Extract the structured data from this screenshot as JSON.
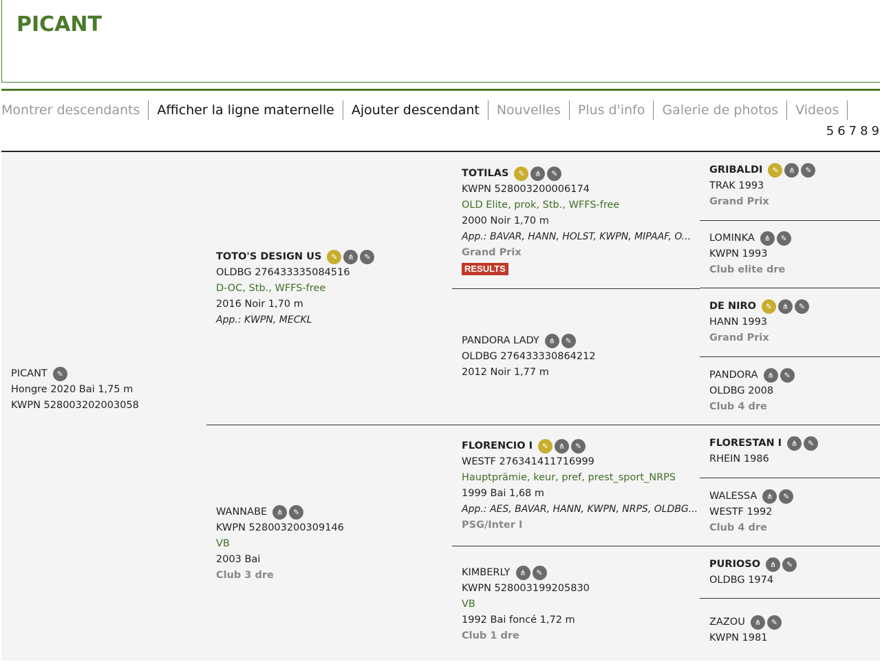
{
  "title": "PICANT",
  "nav": [
    {
      "label": "Montrer descendants",
      "state": "dim"
    },
    {
      "label": "Afficher la ligne maternelle",
      "state": "active"
    },
    {
      "label": "Ajouter descendant",
      "state": "active"
    },
    {
      "label": "Nouvelles",
      "state": "dim"
    },
    {
      "label": "Plus d'info",
      "state": "dim"
    },
    {
      "label": "Galerie de photos",
      "state": "dim"
    },
    {
      "label": "Videos",
      "state": "dim"
    }
  ],
  "pages": [
    "5",
    "6",
    "7",
    "8",
    "9"
  ],
  "colors": {
    "brand": "#4a7a2c",
    "gold_icon": "#c9ad2e",
    "grey_icon": "#6b6b6b",
    "results": "#c0392b"
  },
  "pedigree": [
    {
      "name": "PICANT",
      "bold": false,
      "icons": [
        "edit-icon"
      ],
      "lines": [
        {
          "t": "Hongre 2020 Bai 1,75 m",
          "k": "info"
        },
        {
          "t": "KWPN 528003202003058",
          "k": "id"
        }
      ]
    },
    {
      "name": "TOTO'S DESIGN US",
      "bold": true,
      "icons": [
        "approved-stallion-icon",
        "pedigree-tree-icon",
        "edit-icon"
      ],
      "lines": [
        {
          "t": "OLDBG 276433335084516",
          "k": "id"
        },
        {
          "t": "D-OC, Stb., WFFS-free",
          "k": "predicates"
        },
        {
          "t": "2016 Noir 1,70 m",
          "k": "info"
        },
        {
          "t": "App.: KWPN, MECKL",
          "k": "approvals"
        }
      ]
    },
    {
      "name": "WANNABE",
      "bold": false,
      "icons": [
        "pedigree-tree-icon",
        "edit-icon"
      ],
      "lines": [
        {
          "t": "KWPN 528003200309146",
          "k": "id"
        },
        {
          "t": "VB",
          "k": "predicates"
        },
        {
          "t": "2003 Bai",
          "k": "info"
        },
        {
          "t": "Club 3 dre",
          "k": "level"
        }
      ]
    },
    {
      "name": "TOTILAS",
      "bold": true,
      "icons": [
        "approved-stallion-icon",
        "pedigree-tree-icon",
        "edit-icon"
      ],
      "lines": [
        {
          "t": "KWPN 528003200006174",
          "k": "id"
        },
        {
          "t": "OLD Elite, prok, Stb., WFFS-free",
          "k": "predicates"
        },
        {
          "t": "2000 Noir 1,70 m",
          "k": "info"
        },
        {
          "t": "App.: BAVAR, HANN, HOLST, KWPN, MIPAAF, O...",
          "k": "approvals"
        },
        {
          "t": "Grand Prix",
          "k": "level"
        }
      ],
      "results": "RESULTS"
    },
    {
      "name": "PANDORA LADY",
      "bold": false,
      "icons": [
        "pedigree-tree-icon",
        "edit-icon"
      ],
      "lines": [
        {
          "t": "OLDBG 276433330864212",
          "k": "id"
        },
        {
          "t": "2012 Noir 1,77 m",
          "k": "info"
        }
      ]
    },
    {
      "name": "FLORENCIO I",
      "bold": true,
      "icons": [
        "approved-stallion-icon",
        "pedigree-tree-icon",
        "edit-icon"
      ],
      "lines": [
        {
          "t": "WESTF 276341411716999",
          "k": "id"
        },
        {
          "t": "Hauptprämie, keur, pref, prest_sport_NRPS",
          "k": "predicates"
        },
        {
          "t": "1999 Bai 1,68 m",
          "k": "info"
        },
        {
          "t": "App.: AES, BAVAR, HANN, KWPN, NRPS, OLDBG...",
          "k": "approvals"
        },
        {
          "t": "PSG/Inter I",
          "k": "level"
        }
      ]
    },
    {
      "name": "KIMBERLY",
      "bold": false,
      "icons": [
        "pedigree-tree-icon",
        "edit-icon"
      ],
      "lines": [
        {
          "t": "KWPN 528003199205830",
          "k": "id"
        },
        {
          "t": "VB",
          "k": "predicates"
        },
        {
          "t": "1992 Bai foncé 1,72 m",
          "k": "info"
        },
        {
          "t": "Club 1 dre",
          "k": "level"
        }
      ]
    },
    {
      "name": "GRIBALDI",
      "bold": true,
      "icons": [
        "approved-stallion-icon",
        "pedigree-tree-icon",
        "edit-icon"
      ],
      "lines": [
        {
          "t": "TRAK 1993",
          "k": "id"
        },
        {
          "t": "Grand Prix",
          "k": "level"
        }
      ]
    },
    {
      "name": "LOMINKA",
      "bold": false,
      "icons": [
        "pedigree-tree-icon",
        "edit-icon"
      ],
      "lines": [
        {
          "t": "KWPN 1993",
          "k": "id"
        },
        {
          "t": "Club elite dre",
          "k": "level"
        }
      ]
    },
    {
      "name": "DE NIRO",
      "bold": true,
      "icons": [
        "approved-stallion-icon",
        "pedigree-tree-icon",
        "edit-icon"
      ],
      "lines": [
        {
          "t": "HANN 1993",
          "k": "id"
        },
        {
          "t": "Grand Prix",
          "k": "level"
        }
      ]
    },
    {
      "name": "PANDORA",
      "bold": false,
      "icons": [
        "pedigree-tree-icon",
        "edit-icon"
      ],
      "lines": [
        {
          "t": "OLDBG 2008",
          "k": "id"
        },
        {
          "t": "Club 4 dre",
          "k": "level"
        }
      ]
    },
    {
      "name": "FLORESTAN I",
      "bold": true,
      "icons": [
        "pedigree-tree-icon",
        "edit-icon"
      ],
      "lines": [
        {
          "t": "RHEIN 1986",
          "k": "id"
        }
      ]
    },
    {
      "name": "WALESSA",
      "bold": false,
      "icons": [
        "pedigree-tree-icon",
        "edit-icon"
      ],
      "lines": [
        {
          "t": "WESTF 1992",
          "k": "id"
        },
        {
          "t": "Club 4 dre",
          "k": "level"
        }
      ]
    },
    {
      "name": "PURIOSO",
      "bold": true,
      "icons": [
        "pedigree-tree-icon",
        "edit-icon"
      ],
      "lines": [
        {
          "t": "OLDBG 1974",
          "k": "id"
        }
      ]
    },
    {
      "name": "ZAZOU",
      "bold": false,
      "icons": [
        "pedigree-tree-icon",
        "edit-icon"
      ],
      "lines": [
        {
          "t": "KWPN 1981",
          "k": "id"
        }
      ]
    }
  ]
}
